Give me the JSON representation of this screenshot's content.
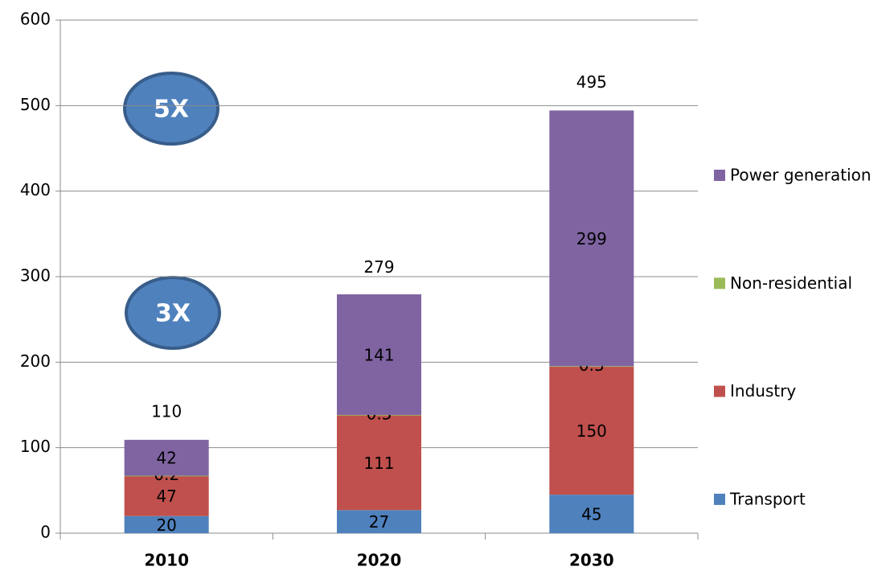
{
  "chart_data": {
    "type": "stacked_bar",
    "categories": [
      "2010",
      "2020",
      "2030"
    ],
    "series": [
      {
        "name": "Transport",
        "color": "#4f81bd",
        "values": [
          20,
          27,
          45
        ]
      },
      {
        "name": "Industry",
        "color": "#c0504d",
        "values": [
          47,
          111,
          150
        ]
      },
      {
        "name": "Non-residential",
        "color": "#9bbb59",
        "values": [
          0.2,
          0.3,
          0.3
        ]
      },
      {
        "name": "Power generation",
        "color": "#8064a2",
        "values": [
          42,
          141,
          299
        ]
      }
    ],
    "totals": [
      110,
      279,
      495
    ],
    "annotations": [
      "5X",
      "3X"
    ],
    "ylim": [
      0,
      600
    ],
    "yticks": [
      0,
      100,
      200,
      300,
      400,
      500,
      600
    ],
    "grid": true,
    "legend": "right"
  }
}
